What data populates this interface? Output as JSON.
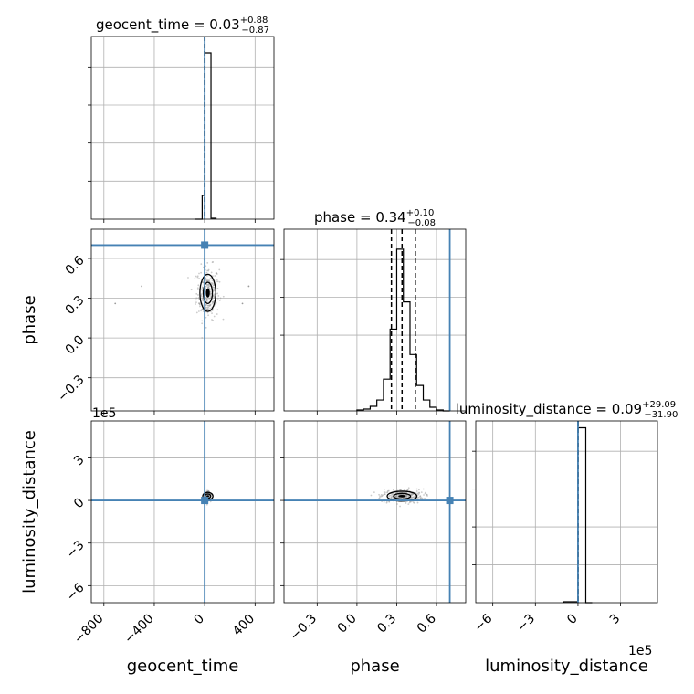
{
  "chart_data": {
    "type": "corner",
    "truth_color": "#4682b4",
    "line_color": "#000000",
    "grid": true,
    "parameters": [
      {
        "key": "geocent_time",
        "label": "geocent_time",
        "title": {
          "main": "geocent_time = 0.03",
          "plus": "+0.88",
          "minus": "−0.87"
        },
        "range": [
          -900,
          550
        ],
        "ticks": [
          {
            "v": -800,
            "label": "−800"
          },
          {
            "v": -400,
            "label": "−400"
          },
          {
            "v": 0,
            "label": "0"
          },
          {
            "v": 400,
            "label": "400"
          }
        ],
        "offset_label": "",
        "truth": 0,
        "quantiles": [
          -0.84,
          0.03,
          0.91
        ]
      },
      {
        "key": "phase",
        "label": "phase",
        "title": {
          "main": "phase = 0.34",
          "plus": "+0.10",
          "minus": "−0.08"
        },
        "range": [
          -0.55,
          0.82
        ],
        "ticks": [
          {
            "v": -0.3,
            "label": "−0.3"
          },
          {
            "v": 0.0,
            "label": "0.0"
          },
          {
            "v": 0.3,
            "label": "0.3"
          },
          {
            "v": 0.6,
            "label": "0.6"
          }
        ],
        "offset_label": "",
        "truth": 0.7,
        "quantiles": [
          0.26,
          0.34,
          0.44
        ]
      },
      {
        "key": "luminosity_distance",
        "label": "luminosity_distance",
        "title": {
          "main": "luminosity_distance = 0.09",
          "plus": "+29.09",
          "minus": "−31.90"
        },
        "range": [
          -7.2,
          5.6
        ],
        "ticks": [
          {
            "v": -6,
            "label": "−6"
          },
          {
            "v": -3,
            "label": "−3"
          },
          {
            "v": 0,
            "label": "0"
          },
          {
            "v": 3,
            "label": "3"
          }
        ],
        "offset_label": "1e5",
        "truth": 0,
        "quantiles": [
          -0.0003,
          9e-07,
          0.0003
        ]
      }
    ],
    "histograms": [
      {
        "param": 0,
        "bins": [
          {
            "x0": -80,
            "x1": -20,
            "count": 0
          },
          {
            "x0": -20,
            "x1": 0,
            "count": 26
          },
          {
            "x0": 0,
            "x1": 50,
            "count": 182
          },
          {
            "x0": 50,
            "x1": 90,
            "count": 1
          }
        ],
        "ymax": 200
      },
      {
        "param": 1,
        "bins": [
          {
            "x0": 0.0,
            "x1": 0.05,
            "count": 1
          },
          {
            "x0": 0.05,
            "x1": 0.1,
            "count": 2
          },
          {
            "x0": 0.1,
            "x1": 0.15,
            "count": 5
          },
          {
            "x0": 0.15,
            "x1": 0.2,
            "count": 12
          },
          {
            "x0": 0.2,
            "x1": 0.25,
            "count": 35
          },
          {
            "x0": 0.25,
            "x1": 0.3,
            "count": 90
          },
          {
            "x0": 0.3,
            "x1": 0.35,
            "count": 178
          },
          {
            "x0": 0.35,
            "x1": 0.4,
            "count": 120
          },
          {
            "x0": 0.4,
            "x1": 0.45,
            "count": 62
          },
          {
            "x0": 0.45,
            "x1": 0.5,
            "count": 28
          },
          {
            "x0": 0.5,
            "x1": 0.55,
            "count": 12
          },
          {
            "x0": 0.55,
            "x1": 0.6,
            "count": 4
          },
          {
            "x0": 0.6,
            "x1": 0.65,
            "count": 1
          },
          {
            "x0": 0.65,
            "x1": 0.7,
            "count": 0
          }
        ],
        "ymax": 200
      },
      {
        "param": 2,
        "bins": [
          {
            "x0": -1.0,
            "x1": 0.0,
            "count": 1
          },
          {
            "x0": 0.0,
            "x1": 0.55,
            "count": 178
          },
          {
            "x0": 0.55,
            "x1": 1.0,
            "count": 0
          }
        ],
        "ymax": 185
      }
    ],
    "scatter_2d": [
      {
        "x_param": 0,
        "y_param": 1,
        "center": [
          25,
          0.34
        ],
        "spread": [
          45,
          0.1
        ],
        "outliers_x": [
          -710,
          -500,
          300,
          350
        ]
      },
      {
        "x_param": 0,
        "y_param": 2,
        "center": [
          25,
          0.3
        ],
        "spread": [
          10,
          0.15
        ],
        "outliers_x": []
      },
      {
        "x_param": 1,
        "y_param": 2,
        "center": [
          0.34,
          0.3
        ],
        "spread": [
          0.08,
          0.25
        ],
        "outliers_x": []
      }
    ]
  }
}
